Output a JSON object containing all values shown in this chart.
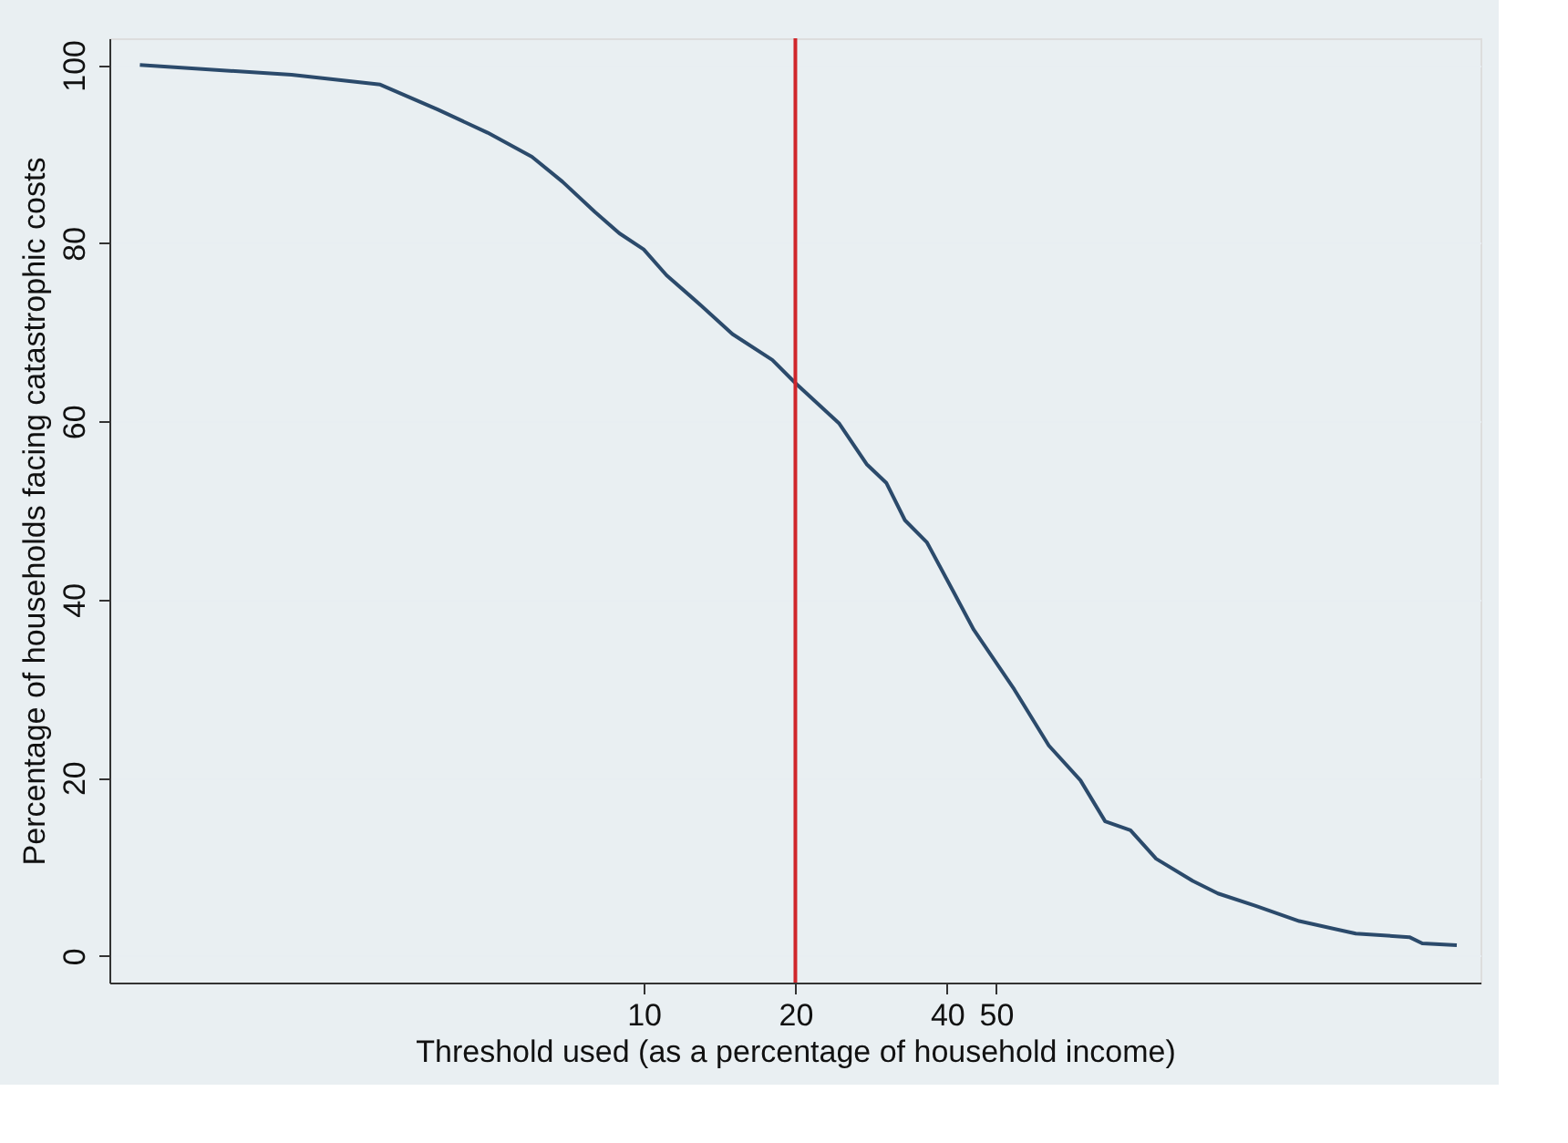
{
  "chart_data": {
    "type": "line",
    "xlabel": "Threshold used (as a percentage of household income)",
    "ylabel": "Percentage of households facing catastrophic costs",
    "x": [
      1,
      2,
      3,
      3.9,
      4.9,
      6.0,
      6.9,
      8.0,
      8.95,
      10,
      11.1,
      13,
      15,
      18,
      20,
      24.4,
      27.7,
      30.3,
      33,
      36.5,
      40.9,
      45.2,
      54.4,
      63.7,
      73.6,
      82.4,
      92.5,
      104,
      123,
      138,
      164,
      200,
      259,
      331,
      351,
      411
    ],
    "series": [
      {
        "color": "#2b4a6b",
        "values": [
          100,
          98.9,
          97.8,
          95.0,
          92.4,
          89.7,
          86.9,
          83.5,
          81.1,
          79.3,
          76.4,
          73.0,
          69.8,
          66.9,
          64.3,
          59.8,
          55.2,
          53.1,
          48.9,
          46.4,
          41.2,
          36.6,
          29.9,
          23.6,
          19.7,
          15.1,
          14.1,
          10.9,
          8.4,
          7.0,
          5.6,
          3.9,
          2.5,
          2.1,
          1.4,
          1.2
        ]
      }
    ],
    "xlim": [
      0.87,
      458
    ],
    "xticks": [
      10,
      20,
      40,
      50
    ],
    "ylim": [
      -3,
      103
    ],
    "yticks": [
      0,
      20,
      40,
      60,
      80,
      100
    ],
    "log": "x",
    "grid": "y",
    "line_style": "solid",
    "ref_lines": [
      {
        "axis": "x",
        "value": 20,
        "color": "#d0262b"
      }
    ]
  }
}
